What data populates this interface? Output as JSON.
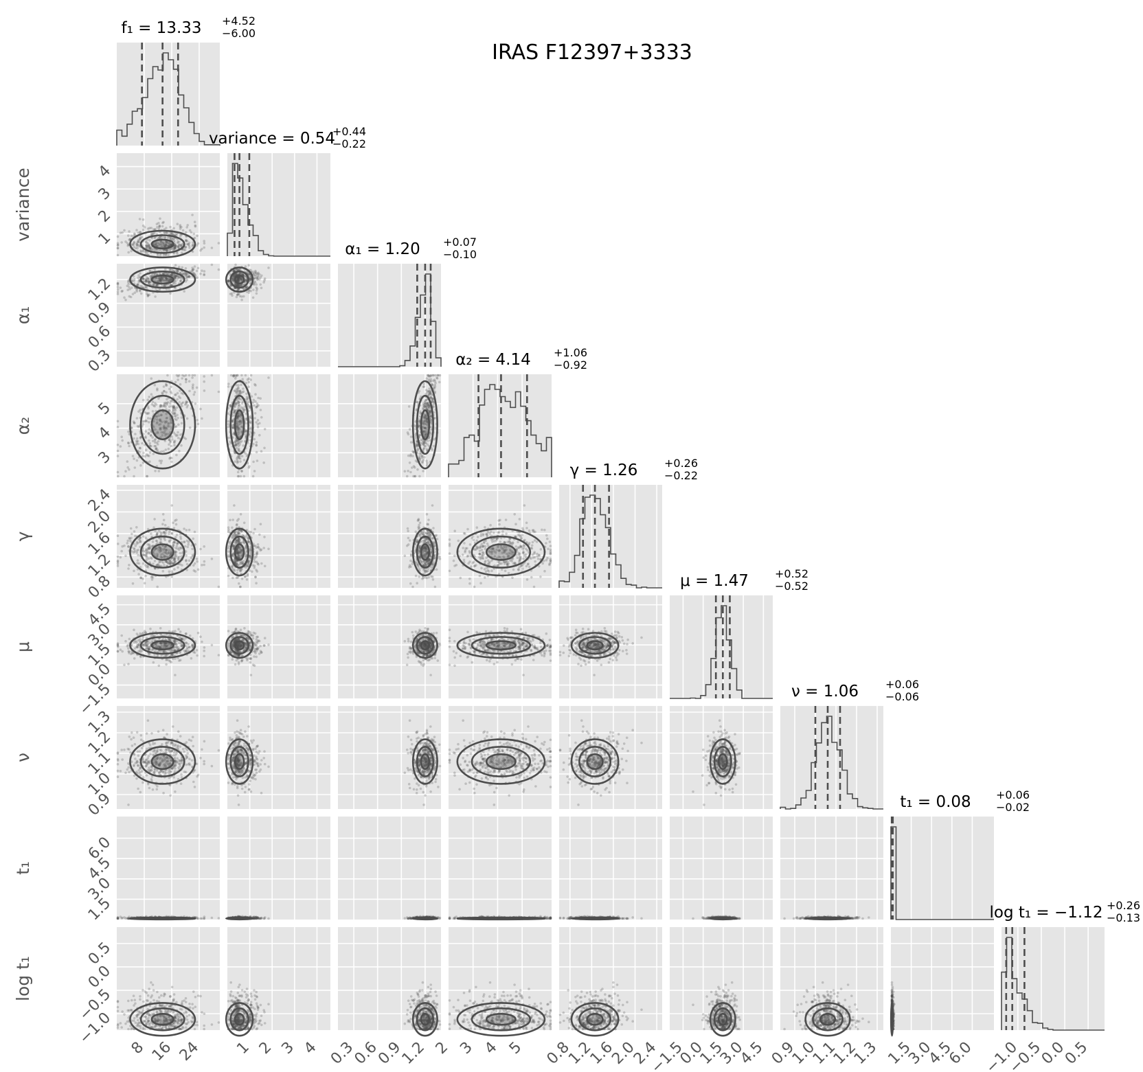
{
  "chart_data": {
    "type": "scatter",
    "title": "IRAS F12397+3333",
    "variables": [
      {
        "label": "f₁",
        "range": [
          0,
          30
        ],
        "ticks": [
          8,
          16,
          24
        ],
        "tick_labels": [
          "8",
          "16",
          "24"
        ],
        "median": 13.33,
        "plus": 4.52,
        "minus": 6.0,
        "quantiles": [
          7.33,
          13.33,
          17.85
        ],
        "title_text": "f₁ = 13.33",
        "plus_text": "+4.52",
        "minus_text": "−6.00"
      },
      {
        "label": "variance",
        "range": [
          0.0,
          4.6
        ],
        "ticks": [
          1,
          2,
          3,
          4
        ],
        "tick_labels": [
          "1",
          "2",
          "3",
          "4"
        ],
        "median": 0.54,
        "plus": 0.44,
        "minus": 0.22,
        "quantiles": [
          0.32,
          0.54,
          0.98
        ],
        "title_text": "variance = 0.54",
        "plus_text": "+0.44",
        "minus_text": "−0.22"
      },
      {
        "label": "α₁",
        "range": [
          0.1,
          1.4
        ],
        "ticks": [
          0.3,
          0.6,
          0.9,
          1.2
        ],
        "tick_labels": [
          "0.3",
          "0.6",
          "0.9",
          "1.2"
        ],
        "median": 1.2,
        "plus": 0.07,
        "minus": 0.1,
        "quantiles": [
          1.1,
          1.2,
          1.27
        ],
        "title_text": "α₁ = 1.20",
        "plus_text": "+0.07",
        "minus_text": "−0.10"
      },
      {
        "label": "α₂",
        "range": [
          2,
          6.2
        ],
        "ticks": [
          2,
          3,
          4,
          5
        ],
        "tick_labels": [
          "2",
          "3",
          "4",
          "5"
        ],
        "median": 4.14,
        "plus": 1.06,
        "minus": 0.92,
        "quantiles": [
          3.22,
          4.14,
          5.2
        ],
        "title_text": "α₂ = 4.14",
        "plus_text": "+1.06",
        "minus_text": "−0.92"
      },
      {
        "label": "γ",
        "range": [
          0.6,
          2.5
        ],
        "ticks": [
          0.8,
          1.2,
          1.6,
          2.0,
          2.4
        ],
        "tick_labels": [
          "0.8",
          "1.2",
          "1.6",
          "2.0",
          "2.4"
        ],
        "median": 1.26,
        "plus": 0.26,
        "minus": 0.22,
        "quantiles": [
          1.04,
          1.26,
          1.52
        ],
        "title_text": "γ = 1.26",
        "plus_text": "+0.26",
        "minus_text": "−0.22"
      },
      {
        "label": "μ",
        "range": [
          -2.5,
          5.2
        ],
        "ticks": [
          -1.5,
          0.0,
          1.5,
          3.0,
          4.5
        ],
        "tick_labels": [
          "−1.5",
          "0.0",
          "1.5",
          "3.0",
          "4.5"
        ],
        "median": 1.47,
        "plus": 0.52,
        "minus": 0.52,
        "quantiles": [
          0.95,
          1.47,
          1.99
        ],
        "title_text": "μ = 1.47",
        "plus_text": "+0.52",
        "minus_text": "−0.52"
      },
      {
        "label": "ν",
        "range": [
          0.83,
          1.33
        ],
        "ticks": [
          0.9,
          1.0,
          1.1,
          1.2,
          1.3
        ],
        "tick_labels": [
          "0.9",
          "1.0",
          "1.1",
          "1.2",
          "1.3"
        ],
        "median": 1.06,
        "plus": 0.06,
        "minus": 0.06,
        "quantiles": [
          1.0,
          1.06,
          1.12
        ],
        "title_text": "ν = 1.06",
        "plus_text": "+0.06",
        "minus_text": "−0.06"
      },
      {
        "label": "t₁",
        "range": [
          0.0,
          7.6
        ],
        "ticks": [
          1.5,
          3.0,
          4.5,
          6.0
        ],
        "tick_labels": [
          "1.5",
          "3.0",
          "4.5",
          "6.0"
        ],
        "median": 0.08,
        "plus": 0.06,
        "minus": 0.02,
        "quantiles": [
          0.06,
          0.08,
          0.14
        ],
        "title_text": "t₁ = 0.08",
        "plus_text": "+0.06",
        "minus_text": "−0.02"
      },
      {
        "label": "log t₁",
        "range": [
          -1.35,
          0.85
        ],
        "ticks": [
          -1.0,
          -0.5,
          0.0,
          0.5
        ],
        "tick_labels": [
          "−1.0",
          "−0.5",
          "0.0",
          "0.5"
        ],
        "median": -1.12,
        "plus": 0.26,
        "minus": 0.13,
        "quantiles": [
          -1.25,
          -1.12,
          -0.86
        ],
        "title_text": "log t₁ = −1.12",
        "plus_text": "+0.26",
        "minus_text": "−0.13"
      }
    ],
    "grid": true,
    "colors": {
      "panel_bg": "#e5e5e5",
      "grid": "#ffffff",
      "marks": "#4d4d4d",
      "tick_text": "#555555"
    }
  }
}
